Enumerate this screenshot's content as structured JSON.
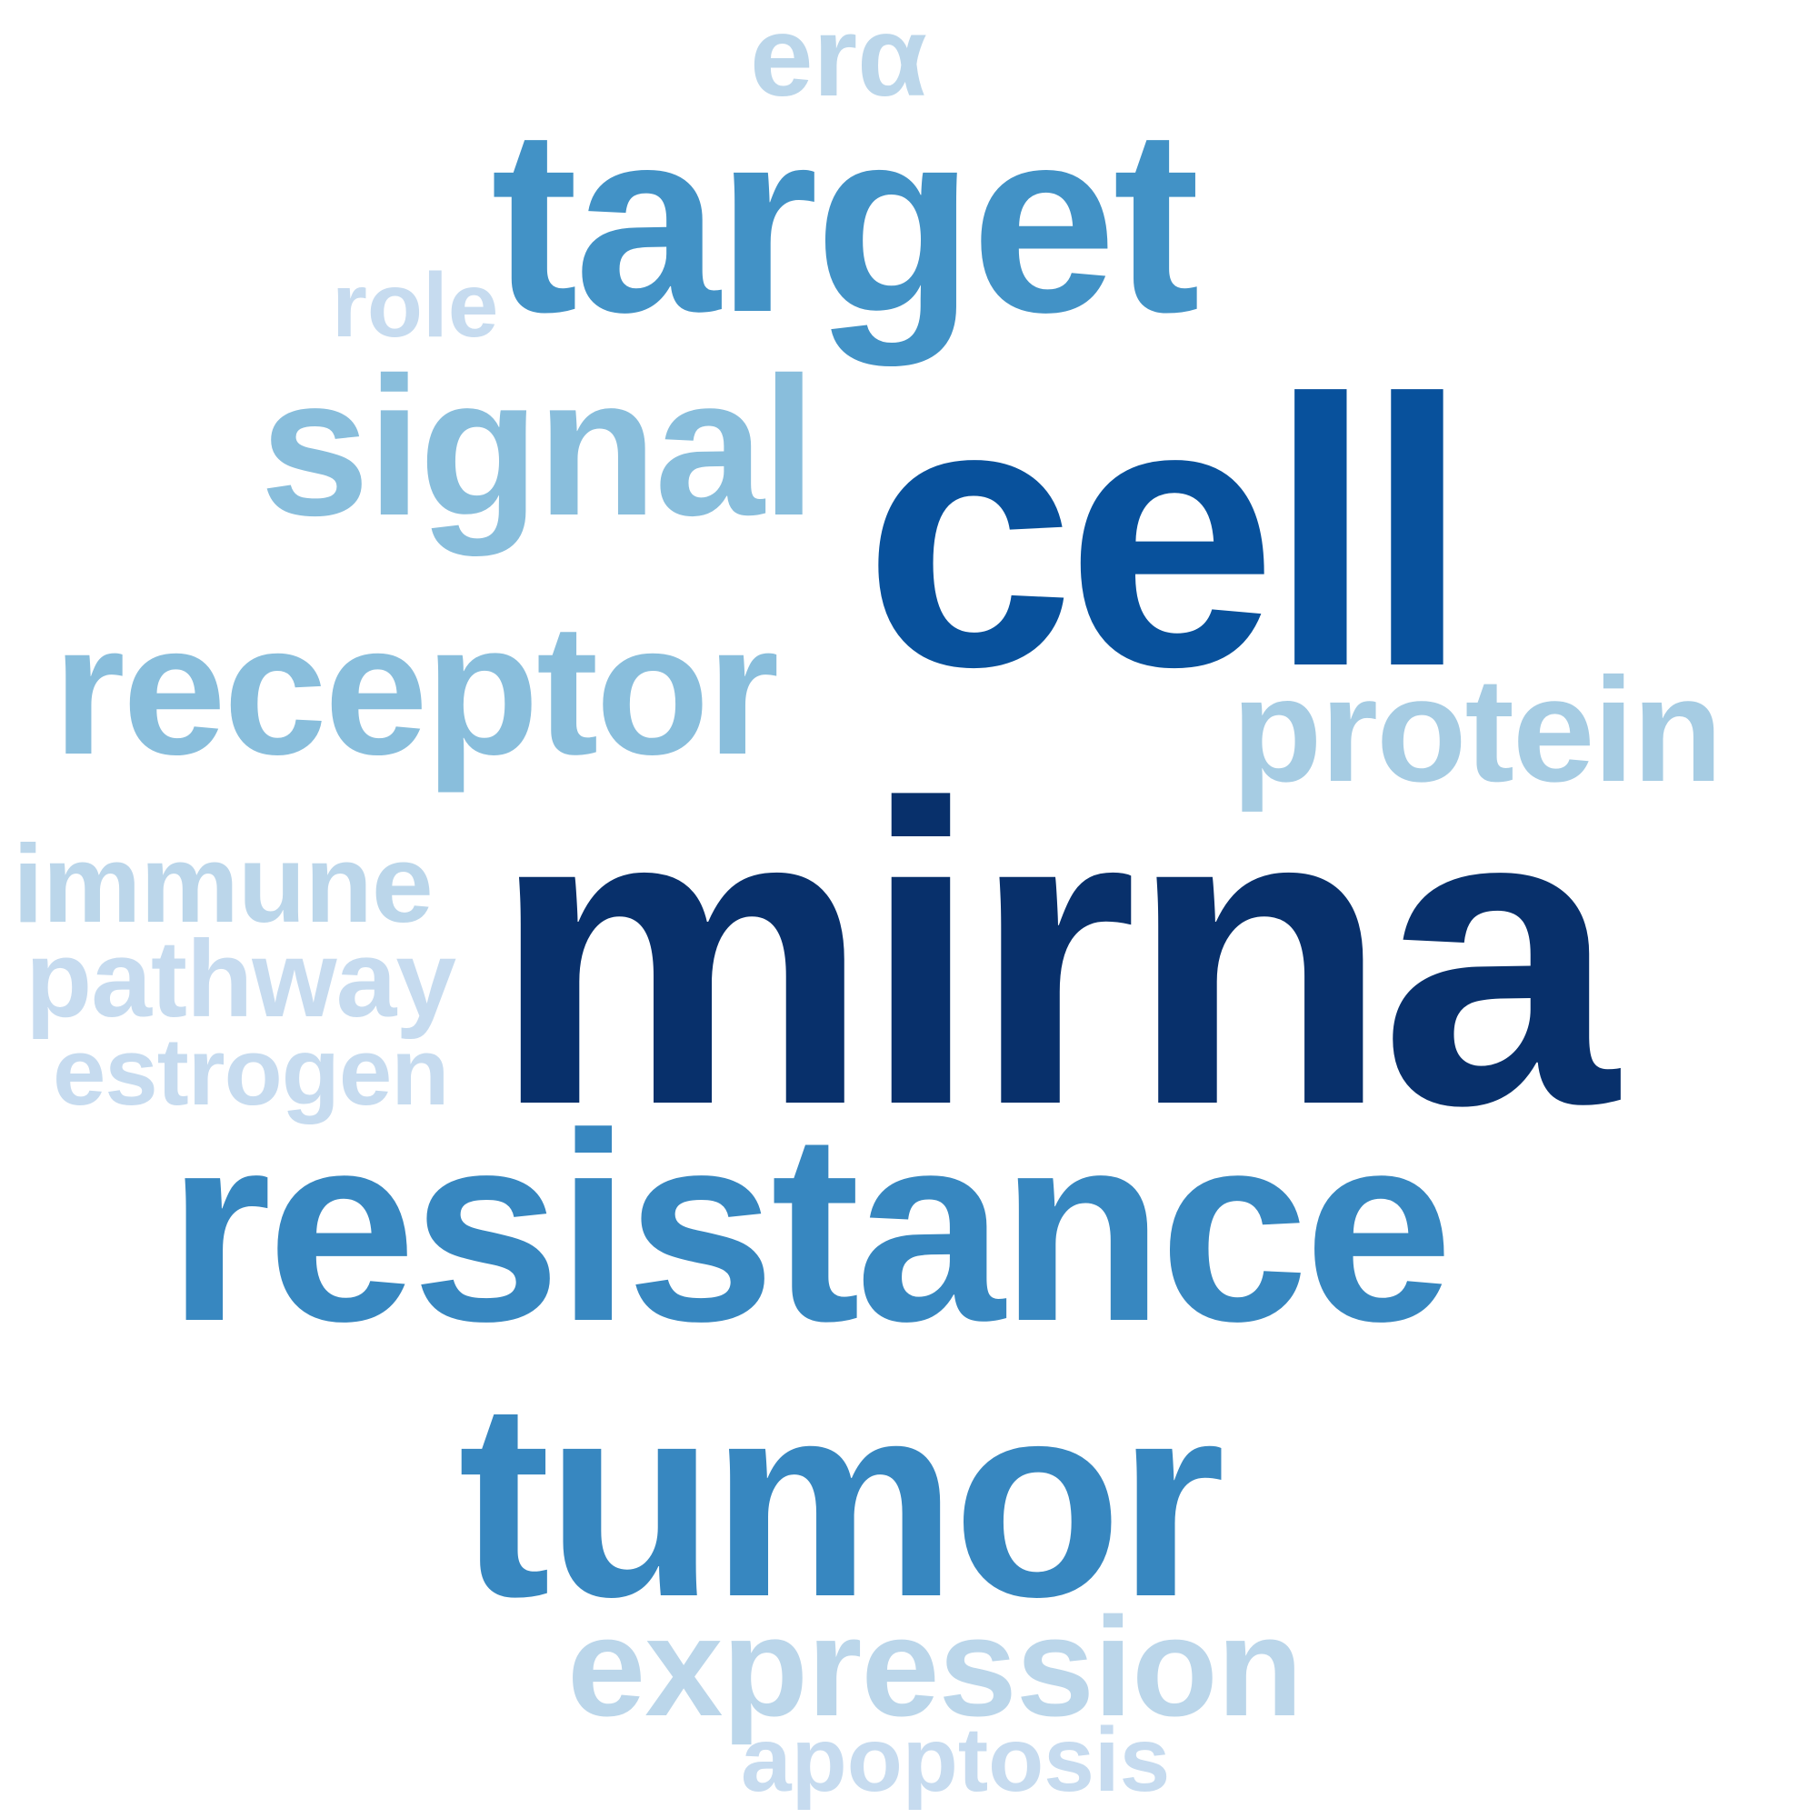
{
  "words": [
    {
      "text": "erα",
      "color": "#bbd6ea"
    },
    {
      "text": "target",
      "color": "#4292c6"
    },
    {
      "text": "role",
      "color": "#c6dbef"
    },
    {
      "text": "signal",
      "color": "#89bedc"
    },
    {
      "text": "cell",
      "color": "#08519c"
    },
    {
      "text": "receptor",
      "color": "#89bedc"
    },
    {
      "text": "protein",
      "color": "#a6cce3"
    },
    {
      "text": "immune",
      "color": "#bbd6ea"
    },
    {
      "text": "mirna",
      "color": "#08306b"
    },
    {
      "text": "pathway",
      "color": "#c6dbef"
    },
    {
      "text": "estrogen",
      "color": "#c6dbef"
    },
    {
      "text": "resistance",
      "color": "#3787c0"
    },
    {
      "text": "tumor",
      "color": "#3787c0"
    },
    {
      "text": "expression",
      "color": "#bbd6ea"
    },
    {
      "text": "apoptosis",
      "color": "#c6dbef"
    }
  ]
}
